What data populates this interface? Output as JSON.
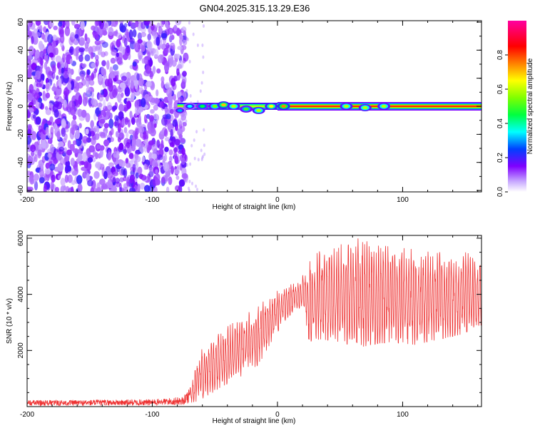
{
  "chart_data": [
    {
      "type": "heatmap",
      "title": "GN04.2025.315.13.29.E36",
      "xlabel": "Height of straight line (km)",
      "ylabel": "Frequency (Hz)",
      "xlim": [
        -200,
        163
      ],
      "ylim": [
        -61,
        61
      ],
      "x_ticks": [
        -200,
        -100,
        0,
        100
      ],
      "y_ticks": [
        60,
        40,
        20,
        0,
        -20,
        -40,
        -60
      ],
      "colorbar": {
        "label": "Normalized spectral amplitude",
        "range": [
          0,
          1
        ],
        "ticks": [
          0.0,
          0.2,
          0.4,
          0.6,
          0.8
        ],
        "colors": [
          "#ffffff",
          "#7f00ff",
          "#0040ff",
          "#00ffff",
          "#00ff00",
          "#ffff00",
          "#ff7f00",
          "#ff0000",
          "#ff00a0"
        ]
      },
      "noise_region": {
        "x_range": [
          -200,
          -73
        ],
        "amplitude": 0.12
      },
      "signal_ridge": {
        "frequency": 0,
        "onset_x": -80,
        "strong_from_x": 0,
        "end_x": 163,
        "amplitude_peak": 0.85,
        "blobs": [
          {
            "x": -78,
            "f": -3,
            "a": 0.3
          },
          {
            "x": -70,
            "f": 0,
            "a": 0.35
          },
          {
            "x": -60,
            "f": 0,
            "a": 0.45
          },
          {
            "x": -50,
            "f": 0,
            "a": 0.55
          },
          {
            "x": -43,
            "f": 1,
            "a": 0.7
          },
          {
            "x": -35,
            "f": 0,
            "a": 0.6
          },
          {
            "x": -25,
            "f": -2,
            "a": 0.5
          },
          {
            "x": -15,
            "f": -3,
            "a": 0.6
          },
          {
            "x": -5,
            "f": 0,
            "a": 0.65
          },
          {
            "x": 5,
            "f": 0,
            "a": 0.75
          },
          {
            "x": 55,
            "f": 0,
            "a": 0.6
          },
          {
            "x": 70,
            "f": -1,
            "a": 0.6
          },
          {
            "x": 85,
            "f": 0,
            "a": 0.6
          }
        ]
      }
    },
    {
      "type": "line",
      "xlabel": "Height of straight line (km)",
      "ylabel": "SNR (10 * v/v)",
      "xlim": [
        -200,
        163
      ],
      "ylim": [
        0,
        6100
      ],
      "x_ticks": [
        -200,
        -100,
        0,
        100
      ],
      "y_ticks": [
        2000,
        4000,
        6000
      ],
      "color": "#ee3333",
      "series": [
        {
          "name": "SNR",
          "envelope_x": [
            -200,
            -150,
            -100,
            -75,
            -68,
            -62,
            -55,
            -45,
            -35,
            -25,
            -15,
            -5,
            5,
            15,
            22,
            25,
            35,
            50,
            65,
            75,
            90,
            110,
            130,
            150,
            163
          ],
          "envelope_low": [
            30,
            30,
            40,
            60,
            150,
            200,
            400,
            700,
            900,
            1200,
            1500,
            2300,
            3000,
            3500,
            3300,
            2300,
            2400,
            2300,
            2100,
            2200,
            2300,
            2200,
            2400,
            2600,
            2900
          ],
          "envelope_high": [
            230,
            240,
            260,
            350,
            900,
            2000,
            2200,
            2700,
            3000,
            3300,
            3600,
            4000,
            4300,
            4400,
            4800,
            5200,
            5600,
            5800,
            6050,
            5800,
            5700,
            5600,
            5500,
            5500,
            5300
          ]
        }
      ]
    }
  ]
}
